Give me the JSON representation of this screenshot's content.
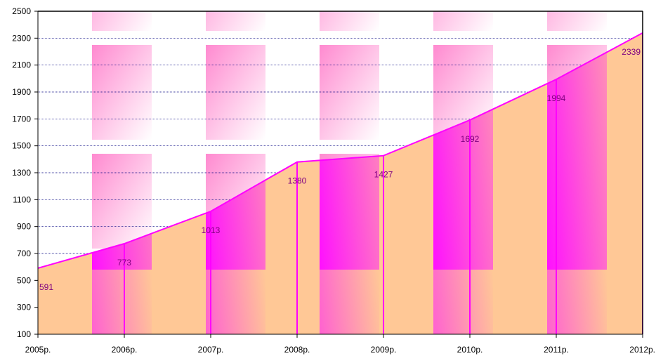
{
  "chart_data": {
    "type": "area",
    "categories": [
      "2005р.",
      "2006р.",
      "2007р.",
      "2008р.",
      "2009р.",
      "2010р.",
      "2011р.",
      "2012р."
    ],
    "values": [
      591,
      773,
      1013,
      1380,
      1427,
      1692,
      1994,
      2339
    ],
    "data_labels": [
      "591",
      "773",
      "1013",
      "1380",
      "1427",
      "1692",
      "1994",
      "2339"
    ],
    "y_ticks": [
      "100",
      "300",
      "500",
      "700",
      "900",
      "1100",
      "1300",
      "1500",
      "1700",
      "1900",
      "2100",
      "2300",
      "2500"
    ],
    "y_tick_values": [
      100,
      300,
      500,
      700,
      900,
      1100,
      1300,
      1500,
      1700,
      1900,
      2100,
      2300,
      2500
    ],
    "ylim": [
      100,
      2500
    ],
    "title": "",
    "xlabel": "",
    "ylabel": "",
    "grid": true,
    "legend": "none",
    "colors": {
      "line": "#ff00ff",
      "grid": "#000080",
      "label": "#800080",
      "area_light": "#ffc896",
      "area_deep": "#ff10ff",
      "background_pink": "#ff8ad0"
    }
  }
}
